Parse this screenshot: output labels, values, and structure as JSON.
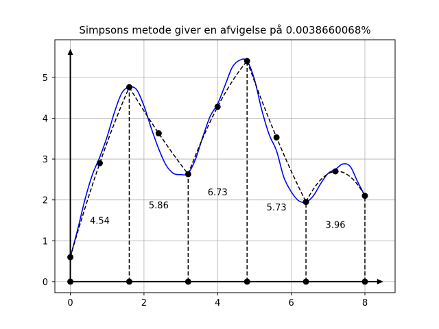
{
  "chart_data": {
    "type": "line",
    "title": "Simpsons metode giver en afvigelse på 0.0038660068%",
    "xlabel": "",
    "ylabel": "",
    "xlim": [
      -0.42,
      8.82
    ],
    "ylim": [
      -0.27,
      5.92
    ],
    "xticks": [
      0,
      2,
      4,
      6,
      8
    ],
    "yticks": [
      0,
      1,
      2,
      3,
      4,
      5
    ],
    "grid": true,
    "colors": {
      "curve": "#0000ff",
      "approx": "#000000",
      "axes": "#000000",
      "grid": "#b0b0b0"
    },
    "curve": {
      "x": [
        0,
        0.2,
        0.4,
        0.6,
        0.8,
        1.0,
        1.2,
        1.4,
        1.6,
        1.8,
        2.0,
        2.2,
        2.4,
        2.6,
        2.8,
        3.0,
        3.2,
        3.4,
        3.6,
        3.8,
        4.0,
        4.2,
        4.4,
        4.6,
        4.8,
        5.0,
        5.2,
        5.4,
        5.6,
        5.8,
        6.0,
        6.2,
        6.4,
        6.6,
        6.8,
        7.0,
        7.2,
        7.4,
        7.6,
        7.8,
        8.0
      ],
      "y": [
        0.6,
        1.28,
        2.02,
        2.62,
        3.05,
        3.55,
        4.15,
        4.62,
        4.76,
        4.7,
        4.3,
        3.75,
        3.25,
        2.85,
        2.65,
        2.62,
        2.65,
        3.0,
        3.55,
        4.05,
        4.35,
        4.8,
        5.25,
        5.42,
        5.4,
        4.95,
        4.2,
        3.6,
        3.2,
        2.55,
        2.2,
        1.98,
        1.95,
        2.1,
        2.4,
        2.65,
        2.75,
        2.88,
        2.82,
        2.45,
        2.1
      ]
    },
    "nodes": {
      "x": [
        0,
        0.8,
        1.6,
        2.4,
        3.2,
        4.0,
        4.8,
        5.6,
        6.4,
        7.2,
        8.0
      ],
      "y": [
        0.6,
        2.9,
        4.76,
        3.63,
        2.63,
        4.28,
        5.4,
        3.53,
        1.95,
        2.7,
        2.1
      ]
    },
    "baseline_points": {
      "x": [
        0,
        1.6,
        3.2,
        4.8,
        6.4,
        8.0
      ],
      "y": [
        0,
        0,
        0,
        0,
        0,
        0
      ]
    },
    "panel_areas": [
      {
        "label": "4.54",
        "x": 0.8,
        "y": 1.5
      },
      {
        "label": "5.86",
        "x": 2.4,
        "y": 1.88
      },
      {
        "label": "6.73",
        "x": 4.0,
        "y": 2.2
      },
      {
        "label": "5.73",
        "x": 5.6,
        "y": 1.83
      },
      {
        "label": "3.96",
        "x": 7.2,
        "y": 1.4
      }
    ],
    "arrow_axes": {
      "x_end": 8.5,
      "y_end": 5.7
    }
  }
}
